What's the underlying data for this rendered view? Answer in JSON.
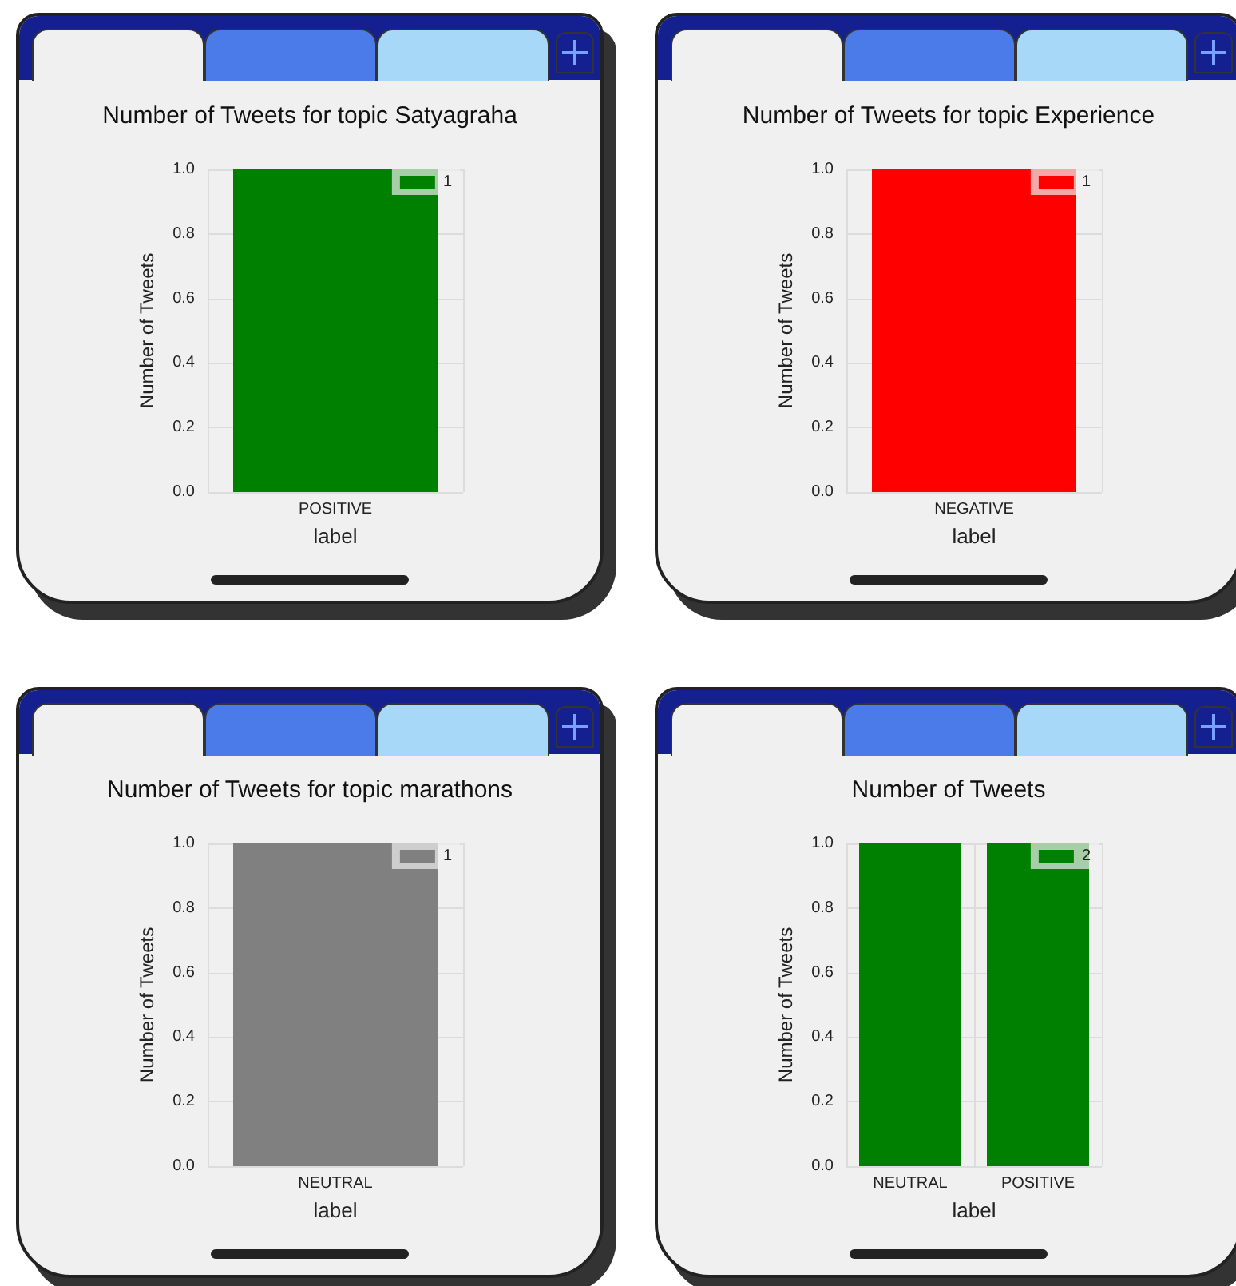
{
  "chart_data": [
    {
      "type": "bar",
      "title": "Number of Tweets for topic Satyagraha",
      "xlabel": "label",
      "ylabel": "Number of Tweets",
      "categories": [
        "POSITIVE"
      ],
      "series": [
        {
          "name": "1",
          "color": "#008000",
          "values": [
            1
          ]
        }
      ],
      "ylim": [
        0,
        1
      ],
      "yticks": [
        {
          "value": 0,
          "label": "0.0"
        },
        {
          "value": 0.2,
          "label": "0.2"
        },
        {
          "value": 0.4,
          "label": "0.4"
        },
        {
          "value": 0.6,
          "label": "0.6"
        },
        {
          "value": 0.8,
          "label": "0.8"
        },
        {
          "value": 1,
          "label": "1.0"
        }
      ],
      "grid": true,
      "legend": "top right"
    },
    {
      "type": "bar",
      "title": "Number of Tweets for topic Experience",
      "xlabel": "label",
      "ylabel": "Number of Tweets",
      "categories": [
        "NEGATIVE"
      ],
      "series": [
        {
          "name": "1",
          "color": "#ff0000",
          "values": [
            1
          ]
        }
      ],
      "ylim": [
        0,
        1
      ],
      "yticks": [
        {
          "value": 0,
          "label": "0.0"
        },
        {
          "value": 0.2,
          "label": "0.2"
        },
        {
          "value": 0.4,
          "label": "0.4"
        },
        {
          "value": 0.6,
          "label": "0.6"
        },
        {
          "value": 0.8,
          "label": "0.8"
        },
        {
          "value": 1,
          "label": "1.0"
        }
      ],
      "grid": true,
      "legend": "top right"
    },
    {
      "type": "bar",
      "title": "Number of Tweets for topic marathons",
      "xlabel": "label",
      "ylabel": "Number of Tweets",
      "categories": [
        "NEUTRAL"
      ],
      "series": [
        {
          "name": "1",
          "color": "#808080",
          "values": [
            1
          ]
        }
      ],
      "ylim": [
        0,
        1
      ],
      "yticks": [
        {
          "value": 0,
          "label": "0.0"
        },
        {
          "value": 0.2,
          "label": "0.2"
        },
        {
          "value": 0.4,
          "label": "0.4"
        },
        {
          "value": 0.6,
          "label": "0.6"
        },
        {
          "value": 0.8,
          "label": "0.8"
        },
        {
          "value": 1,
          "label": "1.0"
        }
      ],
      "grid": true,
      "legend": "top right"
    },
    {
      "type": "bar",
      "title": "Number of Tweets",
      "xlabel": "label",
      "ylabel": "Number of Tweets",
      "categories": [
        "NEUTRAL",
        "POSITIVE"
      ],
      "series": [
        {
          "name": "2",
          "color": "#008000",
          "values": [
            1,
            1
          ]
        }
      ],
      "ylim": [
        0,
        1
      ],
      "yticks": [
        {
          "value": 0,
          "label": "0.0"
        },
        {
          "value": 0.2,
          "label": "0.2"
        },
        {
          "value": 0.4,
          "label": "0.4"
        },
        {
          "value": 0.6,
          "label": "0.6"
        },
        {
          "value": 0.8,
          "label": "0.8"
        },
        {
          "value": 1,
          "label": "1.0"
        }
      ],
      "grid": true,
      "legend": "top right"
    }
  ]
}
